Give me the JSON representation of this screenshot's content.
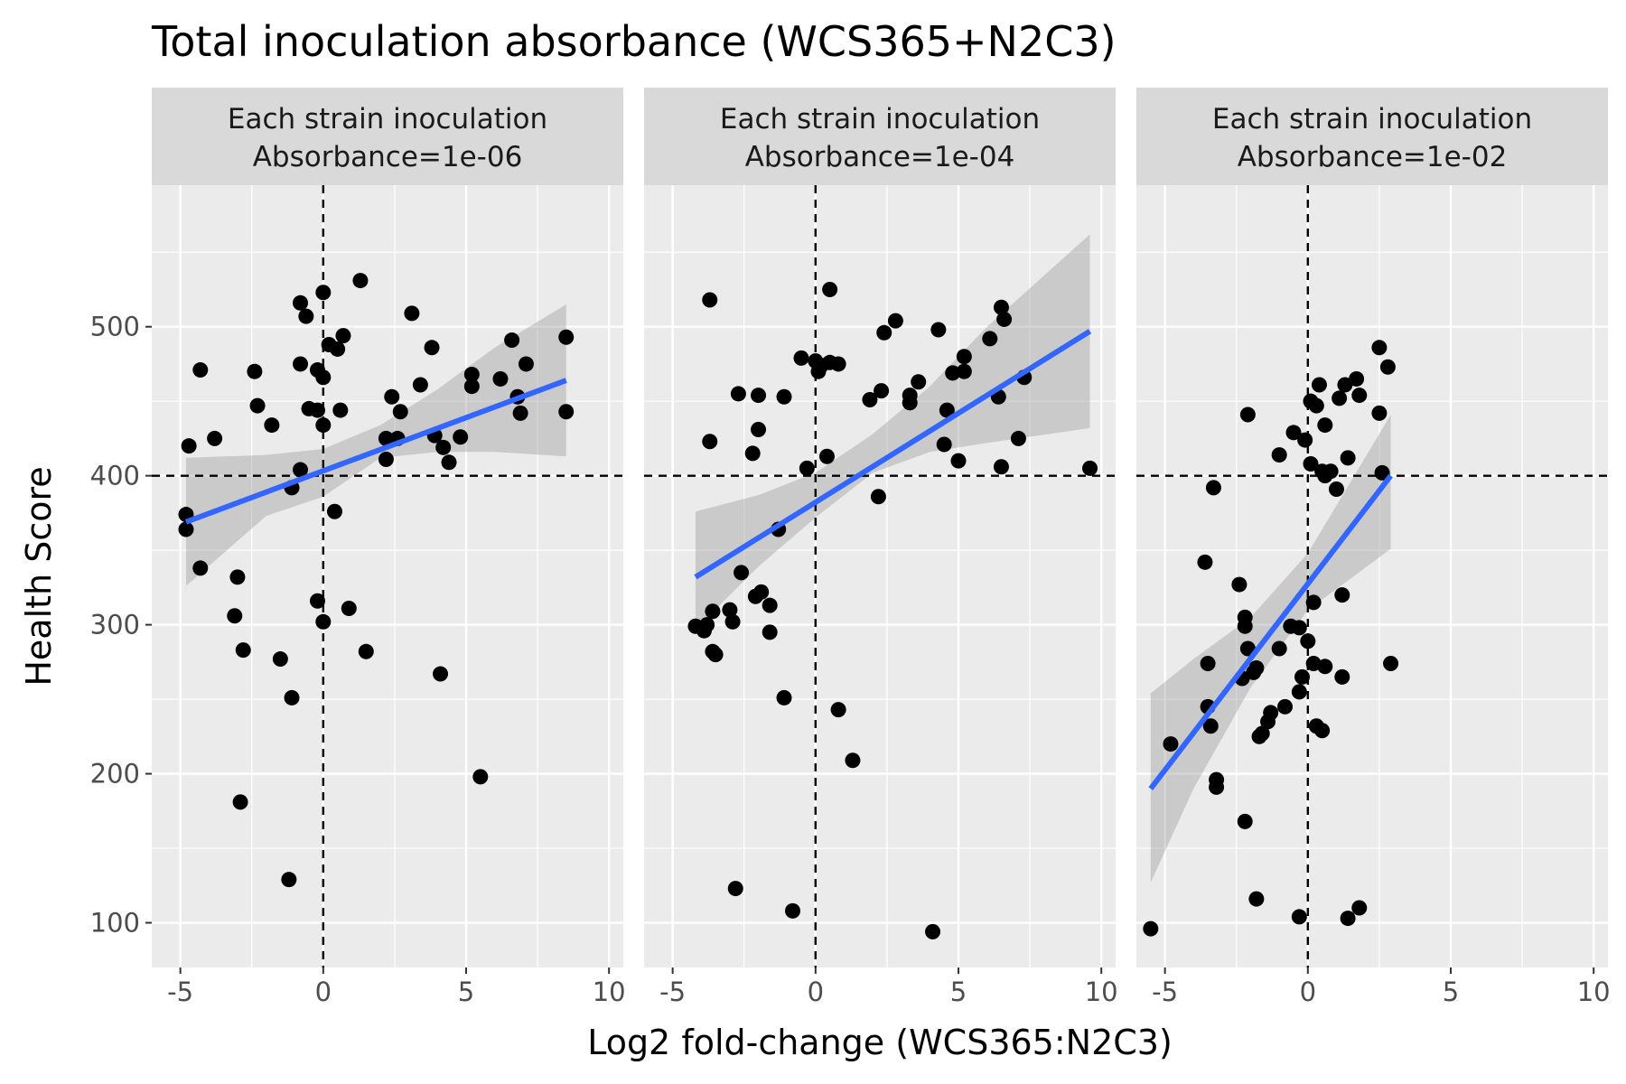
{
  "chart_data": {
    "type": "scatter",
    "title": "Total inoculation absorbance (WCS365+N2C3)",
    "xlabel": "Log2 fold-change (WCS365:N2C3)",
    "ylabel": "Health Score",
    "xlim": [
      -6,
      10.5
    ],
    "ylim": [
      70,
      595
    ],
    "x_ticks": [
      -5,
      0,
      5,
      10
    ],
    "x_tick_labels": [
      "-5",
      "0",
      "5",
      "10"
    ],
    "y_ticks": [
      100,
      200,
      300,
      400,
      500
    ],
    "y_tick_labels": [
      "100",
      "200",
      "300",
      "400",
      "500"
    ],
    "reference_lines": {
      "x": 0,
      "y": 400
    },
    "grid": true,
    "colors": {
      "panel_background": "#ebebeb",
      "strip_background": "#d9d9d9",
      "grid": "#ffffff",
      "point": "#000000",
      "fit_line": "#3366ff",
      "confidence_band": "#999999"
    },
    "panels": [
      {
        "strip_line1": "Each strain inoculation",
        "strip_line2": "Absorbance=1e-06",
        "fit": [
          {
            "x": -4.8,
            "y": 369
          },
          {
            "x": 8.5,
            "y": 464
          }
        ],
        "band": [
          {
            "x": -4.8,
            "lo": 326,
            "hi": 412
          },
          {
            "x": -2,
            "lo": 373,
            "hi": 414
          },
          {
            "x": 0,
            "lo": 386,
            "hi": 418
          },
          {
            "x": 2,
            "lo": 412,
            "hi": 434
          },
          {
            "x": 4,
            "lo": 416,
            "hi": 458
          },
          {
            "x": 6,
            "lo": 416,
            "hi": 486
          },
          {
            "x": 8.5,
            "lo": 413,
            "hi": 515
          }
        ],
        "points": [
          [
            -4.8,
            374
          ],
          [
            -4.8,
            364
          ],
          [
            -4.7,
            420
          ],
          [
            -4.3,
            471
          ],
          [
            -4.3,
            338
          ],
          [
            -3.8,
            425
          ],
          [
            -3.1,
            306
          ],
          [
            -3,
            332
          ],
          [
            -2.9,
            181
          ],
          [
            -2.8,
            283
          ],
          [
            -2.4,
            470
          ],
          [
            -2.3,
            447
          ],
          [
            -1.8,
            434
          ],
          [
            -1.5,
            277
          ],
          [
            -1.2,
            129
          ],
          [
            -1.1,
            392
          ],
          [
            -1.1,
            251
          ],
          [
            -0.8,
            404
          ],
          [
            -0.8,
            475
          ],
          [
            -0.8,
            516
          ],
          [
            -0.6,
            507
          ],
          [
            -0.5,
            445
          ],
          [
            -0.2,
            444
          ],
          [
            -0.2,
            471
          ],
          [
            -0.2,
            316
          ],
          [
            0,
            523
          ],
          [
            0,
            466
          ],
          [
            0,
            434
          ],
          [
            0,
            302
          ],
          [
            0.2,
            488
          ],
          [
            0.4,
            376
          ],
          [
            0.5,
            485
          ],
          [
            0.6,
            444
          ],
          [
            0.7,
            494
          ],
          [
            0.9,
            311
          ],
          [
            1.3,
            531
          ],
          [
            1.5,
            282
          ],
          [
            2.2,
            425
          ],
          [
            2.2,
            411
          ],
          [
            2.4,
            453
          ],
          [
            2.6,
            425
          ],
          [
            2.7,
            443
          ],
          [
            3.1,
            509
          ],
          [
            3.4,
            461
          ],
          [
            3.8,
            486
          ],
          [
            3.9,
            427
          ],
          [
            4.1,
            267
          ],
          [
            4.2,
            419
          ],
          [
            4.4,
            409
          ],
          [
            4.8,
            426
          ],
          [
            5.2,
            468
          ],
          [
            5.2,
            460
          ],
          [
            5.5,
            198
          ],
          [
            6.2,
            465
          ],
          [
            6.6,
            491
          ],
          [
            6.8,
            453
          ],
          [
            6.9,
            442
          ],
          [
            7.1,
            475
          ],
          [
            8.5,
            493
          ],
          [
            8.5,
            443
          ]
        ]
      },
      {
        "strip_line1": "Each strain inoculation",
        "strip_line2": "Absorbance=1e-04",
        "fit": [
          {
            "x": -4.2,
            "y": 332
          },
          {
            "x": 9.6,
            "y": 497
          }
        ],
        "band": [
          {
            "x": -4.2,
            "lo": 297,
            "hi": 376
          },
          {
            "x": -2,
            "lo": 339,
            "hi": 387
          },
          {
            "x": 0,
            "lo": 372,
            "hi": 402
          },
          {
            "x": 2,
            "lo": 402,
            "hi": 428
          },
          {
            "x": 4,
            "lo": 416,
            "hi": 460
          },
          {
            "x": 6,
            "lo": 422,
            "hi": 500
          },
          {
            "x": 9.6,
            "lo": 432,
            "hi": 562
          }
        ],
        "points": [
          [
            -4.2,
            299
          ],
          [
            -3.9,
            296
          ],
          [
            -3.8,
            300
          ],
          [
            -3.7,
            423
          ],
          [
            -3.7,
            518
          ],
          [
            -3.6,
            309
          ],
          [
            -3.6,
            282
          ],
          [
            -3.5,
            280
          ],
          [
            -3,
            310
          ],
          [
            -2.9,
            302
          ],
          [
            -2.8,
            123
          ],
          [
            -2.7,
            455
          ],
          [
            -2.6,
            335
          ],
          [
            -2.2,
            415
          ],
          [
            -2.1,
            319
          ],
          [
            -2,
            454
          ],
          [
            -2,
            431
          ],
          [
            -1.9,
            322
          ],
          [
            -1.6,
            295
          ],
          [
            -1.6,
            313
          ],
          [
            -1.3,
            364
          ],
          [
            -1.1,
            453
          ],
          [
            -1.1,
            251
          ],
          [
            -0.8,
            108
          ],
          [
            -0.5,
            479
          ],
          [
            -0.3,
            405
          ],
          [
            0,
            477
          ],
          [
            0.1,
            470
          ],
          [
            0.2,
            474
          ],
          [
            0.4,
            413
          ],
          [
            0.5,
            525
          ],
          [
            0.5,
            476
          ],
          [
            0.8,
            475
          ],
          [
            0.8,
            243
          ],
          [
            1.3,
            209
          ],
          [
            1.9,
            451
          ],
          [
            2.2,
            386
          ],
          [
            2.3,
            457
          ],
          [
            2.4,
            496
          ],
          [
            2.8,
            504
          ],
          [
            3.3,
            454
          ],
          [
            3.3,
            449
          ],
          [
            3.6,
            463
          ],
          [
            4.1,
            94
          ],
          [
            4.3,
            498
          ],
          [
            4.5,
            421
          ],
          [
            4.6,
            444
          ],
          [
            4.8,
            469
          ],
          [
            5,
            410
          ],
          [
            5.2,
            480
          ],
          [
            5.2,
            470
          ],
          [
            6.1,
            492
          ],
          [
            6.4,
            453
          ],
          [
            6.5,
            406
          ],
          [
            6.5,
            513
          ],
          [
            6.6,
            505
          ],
          [
            7.1,
            425
          ],
          [
            7.3,
            466
          ],
          [
            9.6,
            405
          ]
        ]
      },
      {
        "strip_line1": "Each strain inoculation",
        "strip_line2": "Absorbance=1e-02",
        "fit": [
          {
            "x": -5.5,
            "y": 190
          },
          {
            "x": 2.9,
            "y": 400
          }
        ],
        "band": [
          {
            "x": -5.5,
            "lo": 127,
            "hi": 254
          },
          {
            "x": -4,
            "lo": 190,
            "hi": 277
          },
          {
            "x": -2,
            "lo": 258,
            "hi": 305
          },
          {
            "x": 0,
            "lo": 310,
            "hi": 348
          },
          {
            "x": 1.5,
            "lo": 331,
            "hi": 396
          },
          {
            "x": 2.9,
            "lo": 351,
            "hi": 441
          }
        ],
        "points": [
          [
            -5.5,
            96
          ],
          [
            -4.8,
            220
          ],
          [
            -3.6,
            342
          ],
          [
            -3.5,
            274
          ],
          [
            -3.5,
            245
          ],
          [
            -3.4,
            232
          ],
          [
            -3.3,
            392
          ],
          [
            -3.2,
            191
          ],
          [
            -3.2,
            196
          ],
          [
            -2.4,
            327
          ],
          [
            -2.3,
            264
          ],
          [
            -2.2,
            168
          ],
          [
            -2.2,
            305
          ],
          [
            -2.2,
            299
          ],
          [
            -2.1,
            441
          ],
          [
            -2.1,
            284
          ],
          [
            -1.9,
            268
          ],
          [
            -1.8,
            116
          ],
          [
            -1.8,
            271
          ],
          [
            -1.7,
            225
          ],
          [
            -1.6,
            227
          ],
          [
            -1.4,
            235
          ],
          [
            -1.3,
            241
          ],
          [
            -1.0,
            284
          ],
          [
            -1.0,
            414
          ],
          [
            -0.8,
            245
          ],
          [
            -0.6,
            299
          ],
          [
            -0.5,
            429
          ],
          [
            -0.3,
            255
          ],
          [
            -0.3,
            104
          ],
          [
            -0.3,
            298
          ],
          [
            -0.2,
            265
          ],
          [
            -0.1,
            424
          ],
          [
            0,
            289
          ],
          [
            0.1,
            408
          ],
          [
            0.1,
            450
          ],
          [
            0.2,
            315
          ],
          [
            0.2,
            274
          ],
          [
            0.3,
            232
          ],
          [
            0.3,
            447
          ],
          [
            0.4,
            461
          ],
          [
            0.5,
            403
          ],
          [
            0.5,
            229
          ],
          [
            0.6,
            400
          ],
          [
            0.6,
            272
          ],
          [
            0.6,
            434
          ],
          [
            0.8,
            403
          ],
          [
            1.0,
            391
          ],
          [
            1.1,
            452
          ],
          [
            1.2,
            320
          ],
          [
            1.2,
            265
          ],
          [
            1.3,
            461
          ],
          [
            1.4,
            412
          ],
          [
            1.4,
            103
          ],
          [
            1.7,
            465
          ],
          [
            1.8,
            110
          ],
          [
            1.8,
            454
          ],
          [
            2.5,
            486
          ],
          [
            2.5,
            442
          ],
          [
            2.6,
            402
          ],
          [
            2.8,
            473
          ],
          [
            2.9,
            274
          ]
        ]
      }
    ]
  }
}
